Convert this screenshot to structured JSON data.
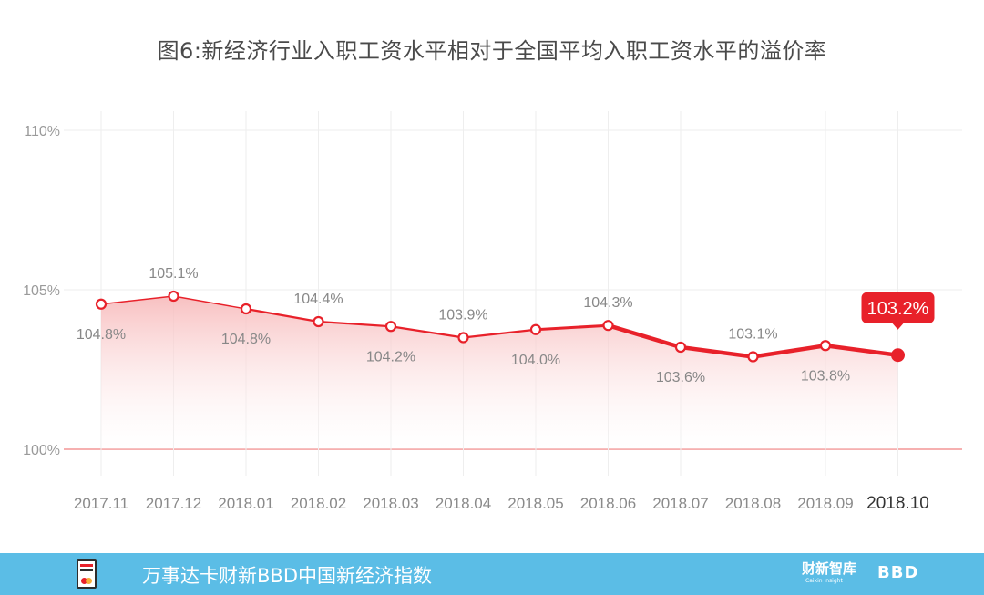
{
  "title": "图6:新经济行业入职工资水平相对于全国平均入职工资水平的溢价率",
  "footer": {
    "index_name": "万事达卡财新BBD中国新经济指数",
    "caixin_logo": "财新智库",
    "caixin_logo_sub": "Caixin Insight",
    "bbd_logo": "BBD"
  },
  "colors": {
    "line": "#e8212a",
    "baseline": "#f08080",
    "fill_top": "#f7b9ba",
    "grid": "#eeeeee",
    "footer_bg": "#5bbde6",
    "label_text": "#888888",
    "highlight_label_bg": "#e8212a"
  },
  "chart_data": {
    "type": "line",
    "title": "图6:新经济行业入职工资水平相对于全国平均入职工资水平的溢价率",
    "categories": [
      "2017.11",
      "2017.12",
      "2018.01",
      "2018.02",
      "2018.03",
      "2018.04",
      "2018.05",
      "2018.06",
      "2018.07",
      "2018.08",
      "2018.09",
      "2018.10"
    ],
    "series": [
      {
        "values": [
          104.8,
          105.1,
          104.8,
          104.4,
          104.2,
          103.9,
          104.0,
          104.3,
          103.6,
          103.1,
          103.8,
          103.2
        ],
        "plot_values": [
          104.55,
          104.8,
          104.4,
          104.0,
          103.85,
          103.5,
          103.75,
          103.88,
          103.2,
          102.9,
          103.25,
          102.95
        ],
        "labels": [
          "104.8%",
          "105.1%",
          "104.8%",
          "104.4%",
          "104.2%",
          "103.9%",
          "104.0%",
          "104.3%",
          "103.6%",
          "103.1%",
          "103.8%",
          "103.2%"
        ]
      }
    ],
    "yticks": [
      "100%",
      "105%",
      "110%"
    ],
    "ytick_values": [
      100,
      105,
      110
    ],
    "ylim": [
      99,
      110.6
    ],
    "grid": true,
    "highlight_last": true,
    "area_fill": true
  }
}
